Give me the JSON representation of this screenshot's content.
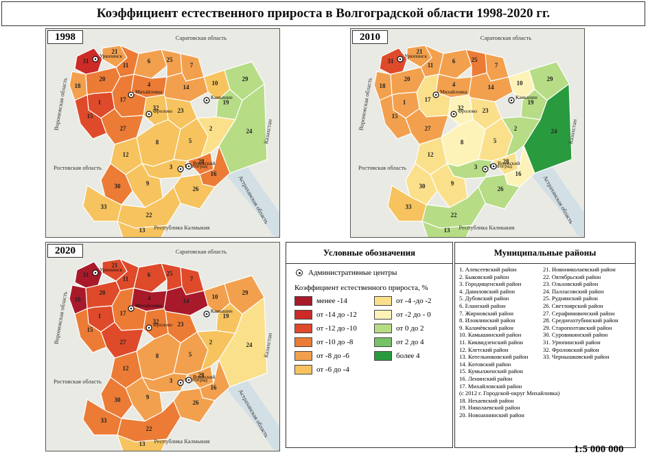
{
  "title": "Коэффициент естественного прироста в Волгоградской области 1998-2020 гг.",
  "colors": {
    "c_lt_m14": "#a81a2a",
    "c_m14_m12": "#cc2b27",
    "c_m12_m10": "#de4a2a",
    "c_m10_m8": "#ec7b35",
    "c_m8_m6": "#f2a04e",
    "c_m6_m4": "#f6c35e",
    "c_m4_m2": "#fbe08c",
    "c_m2_0": "#fdf3b8",
    "c_0_2": "#b6dc85",
    "c_2_4": "#77c266",
    "c_gt_4": "#2a9a3e",
    "land": "#e9eae4",
    "water": "#bfd6e6"
  },
  "maps": [
    {
      "year": "1998"
    },
    {
      "year": "2010"
    },
    {
      "year": "2020"
    }
  ],
  "map_labels": {
    "saratov": "Саратовская область",
    "voronezh": "Воронежская область",
    "rostov": "Ростовская область",
    "astrakhan": "Астраханская область",
    "kazakhstan": "Казахстан",
    "kalmykia": "Республика Калмыкия",
    "uryupinsk": "Урюпинск",
    "mikhaylovka": "Михайловка",
    "frolovo": "Фролово",
    "kamyshin": "Камышин",
    "volgograd": "Волгоград",
    "volzhsky": "Волжский"
  },
  "legend": {
    "title": "Условные обозначения",
    "admin_label": "Административные центры",
    "coef_label": "Коэффициент естественного прироста, %",
    "items": [
      {
        "label": "менее -14",
        "color": "#a81a2a"
      },
      {
        "label": "от -14 до -12",
        "color": "#cc2b27"
      },
      {
        "label": "от -12 до -10",
        "color": "#de4a2a"
      },
      {
        "label": "от -10 до -8",
        "color": "#ec7b35"
      },
      {
        "label": "от -8 до -6",
        "color": "#f2a04e"
      },
      {
        "label": "от -6 до -4",
        "color": "#f6c35e"
      },
      {
        "label": "от -4 -до -2",
        "color": "#fbe08c"
      },
      {
        "label": "от -2 до - 0",
        "color": "#fdf3b8"
      },
      {
        "label": "от 0 до 2",
        "color": "#b6dc85"
      },
      {
        "label": "от 2 до 4",
        "color": "#77c266"
      },
      {
        "label": "более 4",
        "color": "#2a9a3e"
      }
    ]
  },
  "districts": {
    "title": "Муниципальные районы",
    "col1": [
      "1. Алексеевский район",
      "2. Быковский район",
      "3. Городищенский район",
      "4. Даниловский район",
      "5. Дубовский район",
      "6. Еланский район",
      "7. Жирновский район",
      "8. Иловлинский район",
      "9. Калачёвский район",
      "10. Камышинский район",
      "11. Киквидзенский район",
      "12. Клетский район",
      "13. Котельниковский район",
      "14. Котовский район",
      "15. Кумылженский район",
      "16. Ленинский район",
      "17. Михайловский район",
      "(с 2012 г. Городской-округ Михайловка)",
      "18. Нехаевский район",
      "19. Николаевский район",
      "20. Новоаннинский район"
    ],
    "col2": [
      "21. Новониколаевский район",
      "22. Октябрьский район",
      "23. Ольховский район",
      "24. Палласовский район",
      "25. Руднянский район",
      "26. Светлоярский район",
      "27. Серафимовичский район",
      "28. Среднеахтубинский район",
      "29. Старополтавский район",
      "30. Суровикинский район",
      "31. Урюпинский район",
      "32. Фроловский район",
      "33. Чернышковский район"
    ]
  },
  "scale": "1:5 000 000"
}
